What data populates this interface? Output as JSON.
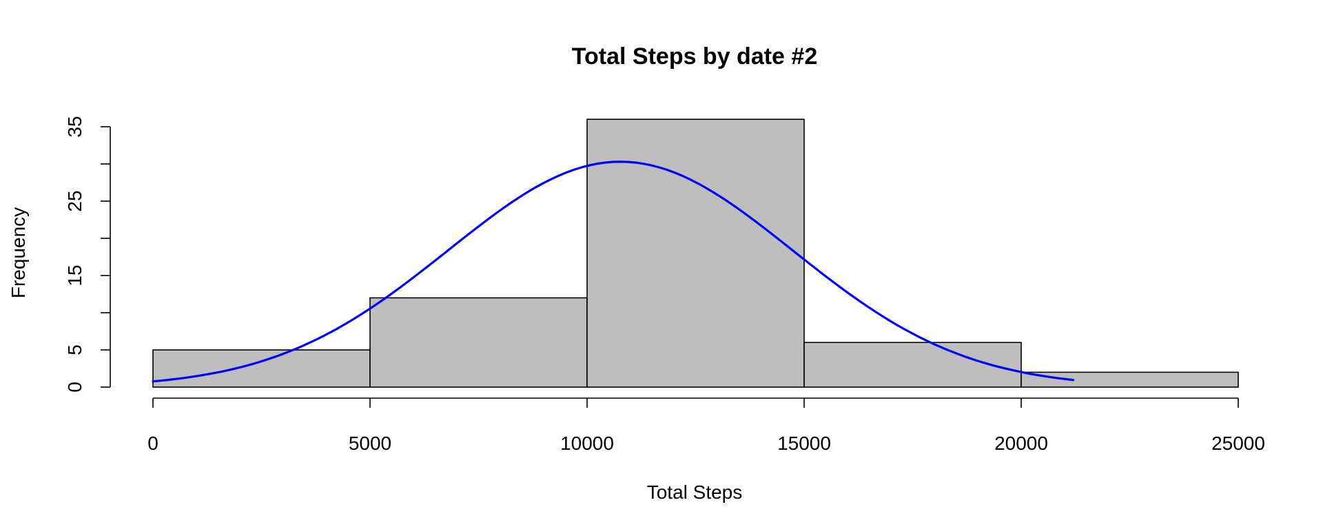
{
  "chart_data": {
    "type": "bar",
    "title": "Total Steps by date #2",
    "xlabel": "Total Steps",
    "ylabel": "Frequency",
    "xlim": [
      0,
      25000
    ],
    "ylim": [
      0,
      35
    ],
    "x_ticks": [
      0,
      5000,
      10000,
      15000,
      20000,
      25000
    ],
    "y_ticks": [
      0,
      5,
      10,
      15,
      20,
      25,
      30,
      35
    ],
    "y_tick_labels_shown": [
      0,
      5,
      15,
      25,
      35
    ],
    "bins": [
      {
        "from": 0,
        "to": 5000,
        "count": 5
      },
      {
        "from": 5000,
        "to": 10000,
        "count": 12
      },
      {
        "from": 10000,
        "to": 15000,
        "count": 36
      },
      {
        "from": 15000,
        "to": 20000,
        "count": 6
      },
      {
        "from": 20000,
        "to": 25000,
        "count": 2
      }
    ],
    "curve": {
      "type": "normal density overlay",
      "mean": 10766,
      "sd": 3970,
      "peak_frequency": 30.3,
      "x_range": [
        0,
        21200
      ]
    },
    "bar_color": "#bebebe",
    "curve_color": "#0000ff",
    "grid": false,
    "legend": "none"
  }
}
